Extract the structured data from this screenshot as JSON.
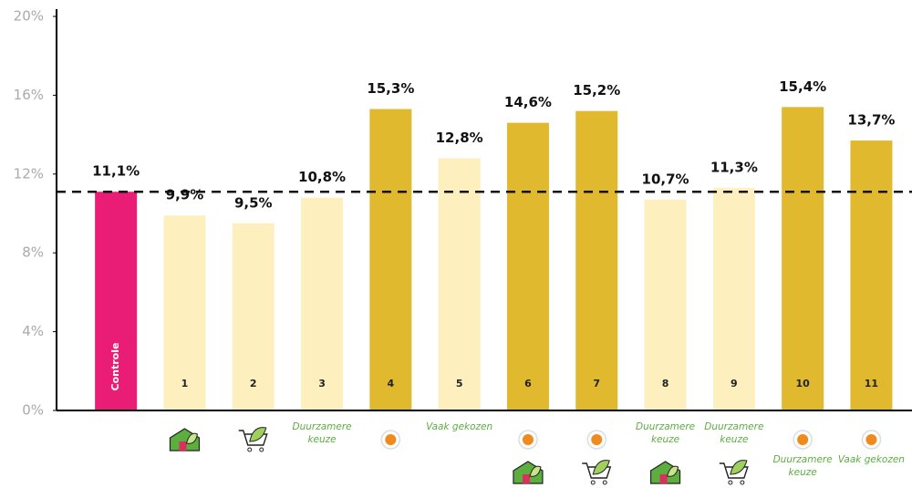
{
  "chart_data": {
    "type": "bar",
    "categories": [
      "Controle",
      "1",
      "2",
      "3",
      "4",
      "5",
      "6",
      "7",
      "8",
      "9",
      "10",
      "11"
    ],
    "values": [
      11.1,
      9.9,
      9.5,
      10.8,
      15.3,
      12.8,
      14.6,
      15.2,
      10.7,
      11.3,
      15.4,
      13.7
    ],
    "value_labels": [
      "11,1%",
      "9,9%",
      "9,5%",
      "10,8%",
      "15,3%",
      "12,8%",
      "14,6%",
      "15,2%",
      "10,7%",
      "11,3%",
      "15,4%",
      "13,7%"
    ],
    "colors": [
      "#ea1d76",
      "#fdefbe",
      "#fdefbe",
      "#fdefbe",
      "#e0b92f",
      "#fdefbe",
      "#e0b92f",
      "#e0b92f",
      "#fdefbe",
      "#fdefbe",
      "#e0b92f",
      "#e0b92f"
    ],
    "notes": [
      null,
      null,
      null,
      "Duurzamere keuze",
      null,
      "Vaak gekozen",
      null,
      null,
      "Duurzamere keuze",
      "Duurzamere keuze",
      "Duurzamere keuze",
      "Vaak gekozen"
    ],
    "ylim": [
      0,
      20
    ],
    "yticks": [
      {
        "value": 0,
        "label": "0%"
      },
      {
        "value": 4,
        "label": "4%"
      },
      {
        "value": 8,
        "label": "8%"
      },
      {
        "value": 12,
        "label": "12%"
      },
      {
        "value": 16,
        "label": "16%"
      },
      {
        "value": 20,
        "label": "20%"
      }
    ],
    "reference_line": 11.1
  }
}
